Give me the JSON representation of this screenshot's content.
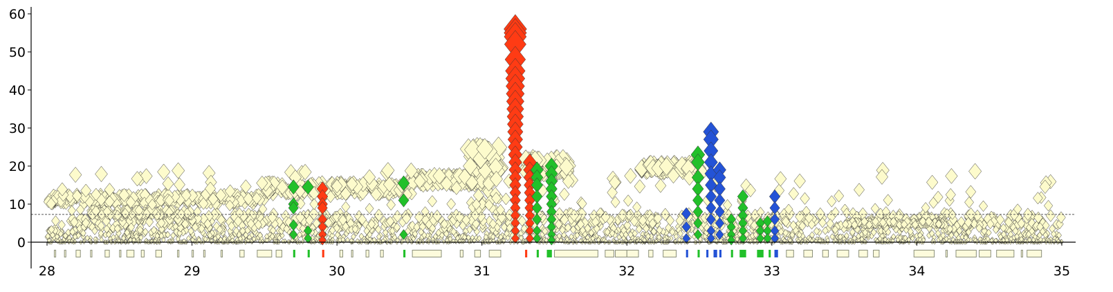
{
  "chart_data": {
    "type": "scatter",
    "title": "",
    "xlabel": "",
    "ylabel": "",
    "xlim": [
      27.9,
      35.1
    ],
    "ylim": [
      -6,
      61
    ],
    "grid": false,
    "legend": "none",
    "x_ticks": [
      28,
      29,
      30,
      31,
      32,
      33,
      34,
      35
    ],
    "x_tick_labels": [
      "28",
      "29",
      "30",
      "31",
      "32",
      "33",
      "34",
      "35"
    ],
    "y_ticks": [
      0,
      10,
      20,
      30,
      40,
      50,
      60
    ],
    "y_tick_labels": [
      "0",
      "10",
      "20",
      "30",
      "40",
      "50",
      "60"
    ],
    "threshold_line": {
      "y": 7.3,
      "style": "dashed",
      "color": "#555555"
    },
    "colors": {
      "background_points": "#fdfbcc",
      "point_outline": "#333333",
      "red": "#ff3b14",
      "green": "#22c02a",
      "blue": "#2453d6",
      "gene_track": "#8a8f7a"
    },
    "background_bands": [
      {
        "x_start": 28.0,
        "x_end": 29.5,
        "y_start": 10.0,
        "y_end": 12.5
      },
      {
        "x_start": 29.5,
        "x_end": 30.5,
        "y_start": 12.5,
        "y_end": 15.5
      },
      {
        "x_start": 30.5,
        "x_end": 31.0,
        "y_start": 15.0,
        "y_end": 17.5
      },
      {
        "x_start": 28.3,
        "x_end": 29.0,
        "y_start": 7.0,
        "y_end": 8.5
      },
      {
        "x_start": 32.1,
        "x_end": 32.5,
        "y_start": 18.5,
        "y_end": 20.5
      },
      {
        "x_start": 33.5,
        "x_end": 34.2,
        "y_start": 4.5,
        "y_end": 5.5
      },
      {
        "x_start": 31.3,
        "x_end": 31.6,
        "y_start": 18.0,
        "y_end": 22.0
      },
      {
        "x_start": 30.9,
        "x_end": 31.15,
        "y_start": 8.0,
        "y_end": 25.0
      }
    ],
    "series": [
      {
        "color": "red",
        "points": [
          {
            "x": 31.23,
            "y": 56
          },
          {
            "x": 31.23,
            "y": 55
          },
          {
            "x": 31.23,
            "y": 54
          },
          {
            "x": 31.23,
            "y": 52
          },
          {
            "x": 31.23,
            "y": 48
          },
          {
            "x": 31.23,
            "y": 45
          },
          {
            "x": 31.23,
            "y": 43
          },
          {
            "x": 31.23,
            "y": 41
          },
          {
            "x": 31.23,
            "y": 39
          },
          {
            "x": 31.23,
            "y": 37
          },
          {
            "x": 31.23,
            "y": 35
          },
          {
            "x": 31.23,
            "y": 33
          },
          {
            "x": 31.23,
            "y": 31
          },
          {
            "x": 31.23,
            "y": 29
          },
          {
            "x": 31.23,
            "y": 27
          },
          {
            "x": 31.23,
            "y": 25
          },
          {
            "x": 31.23,
            "y": 23
          },
          {
            "x": 31.23,
            "y": 21
          },
          {
            "x": 31.23,
            "y": 19
          },
          {
            "x": 31.23,
            "y": 17
          },
          {
            "x": 31.23,
            "y": 15
          },
          {
            "x": 31.23,
            "y": 13
          },
          {
            "x": 31.23,
            "y": 11
          },
          {
            "x": 31.23,
            "y": 9
          },
          {
            "x": 31.23,
            "y": 7
          },
          {
            "x": 31.23,
            "y": 5
          },
          {
            "x": 31.23,
            "y": 3
          },
          {
            "x": 31.23,
            "y": 1
          },
          {
            "x": 31.33,
            "y": 21
          },
          {
            "x": 31.33,
            "y": 19
          },
          {
            "x": 31.33,
            "y": 17
          },
          {
            "x": 31.33,
            "y": 15
          },
          {
            "x": 31.33,
            "y": 13
          },
          {
            "x": 31.33,
            "y": 11
          },
          {
            "x": 31.33,
            "y": 9
          },
          {
            "x": 31.33,
            "y": 7
          },
          {
            "x": 31.33,
            "y": 5
          },
          {
            "x": 31.33,
            "y": 3
          },
          {
            "x": 31.33,
            "y": 1
          },
          {
            "x": 29.9,
            "y": 14
          },
          {
            "x": 29.9,
            "y": 12
          },
          {
            "x": 29.9,
            "y": 10
          },
          {
            "x": 29.9,
            "y": 9
          },
          {
            "x": 29.9,
            "y": 6
          },
          {
            "x": 29.9,
            "y": 4
          },
          {
            "x": 29.9,
            "y": 2
          },
          {
            "x": 29.9,
            "y": 0.5
          }
        ]
      },
      {
        "color": "green",
        "points": [
          {
            "x": 29.7,
            "y": 14.5
          },
          {
            "x": 29.7,
            "y": 10
          },
          {
            "x": 29.7,
            "y": 9
          },
          {
            "x": 29.7,
            "y": 4.5
          },
          {
            "x": 29.7,
            "y": 2
          },
          {
            "x": 29.8,
            "y": 14.5
          },
          {
            "x": 29.8,
            "y": 3
          },
          {
            "x": 29.8,
            "y": 1
          },
          {
            "x": 30.46,
            "y": 15.5
          },
          {
            "x": 30.46,
            "y": 11
          },
          {
            "x": 30.46,
            "y": 2
          },
          {
            "x": 31.38,
            "y": 19
          },
          {
            "x": 31.38,
            "y": 17
          },
          {
            "x": 31.38,
            "y": 15
          },
          {
            "x": 31.38,
            "y": 12
          },
          {
            "x": 31.38,
            "y": 9
          },
          {
            "x": 31.38,
            "y": 6
          },
          {
            "x": 31.38,
            "y": 3
          },
          {
            "x": 31.38,
            "y": 1
          },
          {
            "x": 31.48,
            "y": 20
          },
          {
            "x": 31.48,
            "y": 18
          },
          {
            "x": 31.48,
            "y": 16
          },
          {
            "x": 31.48,
            "y": 14
          },
          {
            "x": 31.48,
            "y": 12
          },
          {
            "x": 31.48,
            "y": 10
          },
          {
            "x": 31.48,
            "y": 8
          },
          {
            "x": 31.48,
            "y": 6
          },
          {
            "x": 31.48,
            "y": 4
          },
          {
            "x": 31.48,
            "y": 2
          },
          {
            "x": 31.48,
            "y": 0.5
          },
          {
            "x": 32.49,
            "y": 23
          },
          {
            "x": 32.49,
            "y": 21
          },
          {
            "x": 32.49,
            "y": 17
          },
          {
            "x": 32.49,
            "y": 14
          },
          {
            "x": 32.49,
            "y": 11
          },
          {
            "x": 32.49,
            "y": 8
          },
          {
            "x": 32.49,
            "y": 5
          },
          {
            "x": 32.49,
            "y": 2
          },
          {
            "x": 32.72,
            "y": 6
          },
          {
            "x": 32.72,
            "y": 4
          },
          {
            "x": 32.72,
            "y": 2
          },
          {
            "x": 32.72,
            "y": 0.5
          },
          {
            "x": 32.8,
            "y": 12
          },
          {
            "x": 32.8,
            "y": 9
          },
          {
            "x": 32.8,
            "y": 7
          },
          {
            "x": 32.8,
            "y": 5
          },
          {
            "x": 32.8,
            "y": 3
          },
          {
            "x": 32.8,
            "y": 1
          },
          {
            "x": 32.92,
            "y": 5
          },
          {
            "x": 32.92,
            "y": 3
          },
          {
            "x": 32.92,
            "y": 1
          },
          {
            "x": 32.97,
            "y": 5.5
          },
          {
            "x": 32.97,
            "y": 3
          },
          {
            "x": 32.97,
            "y": 1
          }
        ]
      },
      {
        "color": "blue",
        "points": [
          {
            "x": 32.58,
            "y": 29
          },
          {
            "x": 32.58,
            "y": 27
          },
          {
            "x": 32.58,
            "y": 24
          },
          {
            "x": 32.58,
            "y": 21
          },
          {
            "x": 32.58,
            "y": 18
          },
          {
            "x": 32.58,
            "y": 15
          },
          {
            "x": 32.58,
            "y": 12
          },
          {
            "x": 32.58,
            "y": 9
          },
          {
            "x": 32.58,
            "y": 6
          },
          {
            "x": 32.58,
            "y": 3
          },
          {
            "x": 32.58,
            "y": 1
          },
          {
            "x": 32.64,
            "y": 19
          },
          {
            "x": 32.64,
            "y": 17
          },
          {
            "x": 32.64,
            "y": 14
          },
          {
            "x": 32.64,
            "y": 11
          },
          {
            "x": 32.64,
            "y": 8
          },
          {
            "x": 32.64,
            "y": 5
          },
          {
            "x": 32.64,
            "y": 2
          },
          {
            "x": 32.41,
            "y": 7.5
          },
          {
            "x": 32.41,
            "y": 4
          },
          {
            "x": 32.41,
            "y": 1
          },
          {
            "x": 33.02,
            "y": 12
          },
          {
            "x": 33.02,
            "y": 9
          },
          {
            "x": 33.02,
            "y": 6
          },
          {
            "x": 33.02,
            "y": 3
          },
          {
            "x": 33.02,
            "y": 1
          }
        ]
      }
    ],
    "gene_track": {
      "y": -3,
      "features": [
        {
          "x": 28.05,
          "w": 0.01
        },
        {
          "x": 28.12,
          "w": 0.01
        },
        {
          "x": 28.2,
          "w": 0.03
        },
        {
          "x": 28.3,
          "w": 0.01
        },
        {
          "x": 28.4,
          "w": 0.03
        },
        {
          "x": 28.5,
          "w": 0.01
        },
        {
          "x": 28.55,
          "w": 0.05
        },
        {
          "x": 28.65,
          "w": 0.02
        },
        {
          "x": 28.75,
          "w": 0.04
        },
        {
          "x": 28.9,
          "w": 0.01
        },
        {
          "x": 29.0,
          "w": 0.01
        },
        {
          "x": 29.08,
          "w": 0.01
        },
        {
          "x": 29.2,
          "w": 0.01
        },
        {
          "x": 29.33,
          "w": 0.03
        },
        {
          "x": 29.45,
          "w": 0.1
        },
        {
          "x": 29.58,
          "w": 0.04
        },
        {
          "x": 29.7,
          "w": 0.01,
          "c": "green"
        },
        {
          "x": 29.8,
          "w": 0.01,
          "c": "green"
        },
        {
          "x": 29.9,
          "w": 0.01,
          "c": "red"
        },
        {
          "x": 30.02,
          "w": 0.02
        },
        {
          "x": 30.1,
          "w": 0.01
        },
        {
          "x": 30.2,
          "w": 0.02
        },
        {
          "x": 30.3,
          "w": 0.02
        },
        {
          "x": 30.46,
          "w": 0.01,
          "c": "green"
        },
        {
          "x": 30.52,
          "w": 0.2
        },
        {
          "x": 30.85,
          "w": 0.02
        },
        {
          "x": 30.95,
          "w": 0.04
        },
        {
          "x": 31.05,
          "w": 0.08
        },
        {
          "x": 31.3,
          "w": 0.01,
          "c": "red"
        },
        {
          "x": 31.38,
          "w": 0.01,
          "c": "green"
        },
        {
          "x": 31.45,
          "w": 0.03,
          "c": "green"
        },
        {
          "x": 31.5,
          "w": 0.3
        },
        {
          "x": 31.85,
          "w": 0.06
        },
        {
          "x": 31.92,
          "w": 0.08
        },
        {
          "x": 32.0,
          "w": 0.08
        },
        {
          "x": 32.15,
          "w": 0.03
        },
        {
          "x": 32.25,
          "w": 0.09
        },
        {
          "x": 32.41,
          "w": 0.01,
          "c": "blue"
        },
        {
          "x": 32.49,
          "w": 0.01,
          "c": "green"
        },
        {
          "x": 32.55,
          "w": 0.01,
          "c": "blue"
        },
        {
          "x": 32.6,
          "w": 0.02,
          "c": "blue"
        },
        {
          "x": 32.64,
          "w": 0.01,
          "c": "blue"
        },
        {
          "x": 32.72,
          "w": 0.01,
          "c": "green"
        },
        {
          "x": 32.78,
          "w": 0.04,
          "c": "green"
        },
        {
          "x": 32.9,
          "w": 0.04,
          "c": "green"
        },
        {
          "x": 32.98,
          "w": 0.01,
          "c": "green"
        },
        {
          "x": 33.02,
          "w": 0.02,
          "c": "blue"
        },
        {
          "x": 33.1,
          "w": 0.05
        },
        {
          "x": 33.22,
          "w": 0.06
        },
        {
          "x": 33.35,
          "w": 0.04
        },
        {
          "x": 33.45,
          "w": 0.08
        },
        {
          "x": 33.6,
          "w": 0.06
        },
        {
          "x": 33.7,
          "w": 0.04
        },
        {
          "x": 33.98,
          "w": 0.14
        },
        {
          "x": 34.2,
          "w": 0.01
        },
        {
          "x": 34.27,
          "w": 0.14
        },
        {
          "x": 34.43,
          "w": 0.08
        },
        {
          "x": 34.55,
          "w": 0.12
        },
        {
          "x": 34.72,
          "w": 0.01
        },
        {
          "x": 34.76,
          "w": 0.1
        }
      ]
    }
  }
}
